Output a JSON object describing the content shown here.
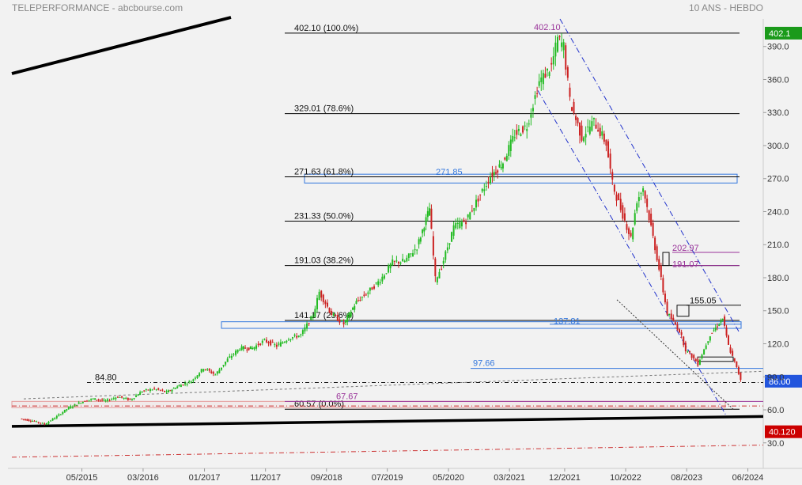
{
  "header": {
    "title": "TELEPERFORMANCE - abcbourse.com",
    "period": "10 ANS - HEBDO"
  },
  "colors": {
    "background": "#f2f2f2",
    "up": "#22bb22",
    "down": "#cc2222",
    "fib": "#000000",
    "channel": "#2233cc",
    "zone": "#3377dd",
    "purple": "#993399",
    "label_green": "#1a9a1a",
    "label_blue": "#2255dd",
    "label_red": "#cc0000"
  },
  "chart_data": {
    "type": "candlestick",
    "title": "TELEPERFORMANCE - abcbourse.com",
    "timeframe": "10 ANS - HEBDO",
    "y_axis": {
      "position": "right",
      "ticks": [
        390.0,
        360.0,
        330.0,
        300.0,
        270.0,
        240.0,
        210.0,
        180.0,
        150.0,
        120.0,
        90.0,
        60.0,
        30.0
      ]
    },
    "x_axis": {
      "ticks": [
        "05/2015",
        "03/2016",
        "01/2017",
        "11/2017",
        "09/2018",
        "07/2019",
        "05/2020",
        "03/2021",
        "12/2021",
        "10/2022",
        "08/2023",
        "06/2024"
      ]
    },
    "price_path": [
      {
        "date": "2014-07",
        "price": 52
      },
      {
        "date": "2014-09",
        "price": 50
      },
      {
        "date": "2014-11",
        "price": 47
      },
      {
        "date": "2015-01",
        "price": 54
      },
      {
        "date": "2015-03",
        "price": 62
      },
      {
        "date": "2015-05",
        "price": 67
      },
      {
        "date": "2015-07",
        "price": 70
      },
      {
        "date": "2015-09",
        "price": 68
      },
      {
        "date": "2015-11",
        "price": 72
      },
      {
        "date": "2016-01",
        "price": 69
      },
      {
        "date": "2016-03",
        "price": 77
      },
      {
        "date": "2016-05",
        "price": 79
      },
      {
        "date": "2016-07",
        "price": 76
      },
      {
        "date": "2016-09",
        "price": 82
      },
      {
        "date": "2016-11",
        "price": 86
      },
      {
        "date": "2017-01",
        "price": 98
      },
      {
        "date": "2017-03",
        "price": 92
      },
      {
        "date": "2017-05",
        "price": 106
      },
      {
        "date": "2017-07",
        "price": 116
      },
      {
        "date": "2017-09",
        "price": 116
      },
      {
        "date": "2017-11",
        "price": 123
      },
      {
        "date": "2018-01",
        "price": 118
      },
      {
        "date": "2018-03",
        "price": 125
      },
      {
        "date": "2018-05",
        "price": 128
      },
      {
        "date": "2018-07",
        "price": 146
      },
      {
        "date": "2018-08",
        "price": 167
      },
      {
        "date": "2018-10",
        "price": 147
      },
      {
        "date": "2018-12",
        "price": 138
      },
      {
        "date": "2019-02",
        "price": 158
      },
      {
        "date": "2019-04",
        "price": 167
      },
      {
        "date": "2019-06",
        "price": 178
      },
      {
        "date": "2019-08",
        "price": 194
      },
      {
        "date": "2019-10",
        "price": 195
      },
      {
        "date": "2019-12",
        "price": 208
      },
      {
        "date": "2020-02",
        "price": 243
      },
      {
        "date": "2020-03",
        "price": 178
      },
      {
        "date": "2020-04",
        "price": 190
      },
      {
        "date": "2020-06",
        "price": 226
      },
      {
        "date": "2020-08",
        "price": 232
      },
      {
        "date": "2020-10",
        "price": 252
      },
      {
        "date": "2020-12",
        "price": 272
      },
      {
        "date": "2021-02",
        "price": 285
      },
      {
        "date": "2021-04",
        "price": 310
      },
      {
        "date": "2021-06",
        "price": 318
      },
      {
        "date": "2021-08",
        "price": 358
      },
      {
        "date": "2021-10",
        "price": 372
      },
      {
        "date": "2021-11",
        "price": 397
      },
      {
        "date": "2021-12",
        "price": 390
      },
      {
        "date": "2022-01",
        "price": 340
      },
      {
        "date": "2022-03",
        "price": 308
      },
      {
        "date": "2022-05",
        "price": 322
      },
      {
        "date": "2022-07",
        "price": 302
      },
      {
        "date": "2022-08",
        "price": 265
      },
      {
        "date": "2022-09",
        "price": 248
      },
      {
        "date": "2022-11",
        "price": 216
      },
      {
        "date": "2022-12",
        "price": 250
      },
      {
        "date": "2023-01",
        "price": 262
      },
      {
        "date": "2023-03",
        "price": 208
      },
      {
        "date": "2023-05",
        "price": 148
      },
      {
        "date": "2023-07",
        "price": 132
      },
      {
        "date": "2023-08",
        "price": 115
      },
      {
        "date": "2023-10",
        "price": 102
      },
      {
        "date": "2023-12",
        "price": 128
      },
      {
        "date": "2024-02",
        "price": 143
      },
      {
        "date": "2024-03",
        "price": 118
      },
      {
        "date": "2024-04",
        "price": 103
      },
      {
        "date": "2024-05",
        "price": 88
      }
    ],
    "fibonacci_levels": [
      {
        "label": "402.10  (100.0%)",
        "value": 402.1
      },
      {
        "label": "329.01  (78.6%)",
        "value": 329.01
      },
      {
        "label": "271.63  (61.8%)",
        "value": 271.63
      },
      {
        "label": "231.33  (50.0%)",
        "value": 231.33
      },
      {
        "label": "191.03  (38.2%)",
        "value": 191.03
      },
      {
        "label": "141.17  (23.6%)",
        "value": 141.17
      },
      {
        "label": "60.57  (0.0%)",
        "value": 60.57
      }
    ],
    "annotations": [
      {
        "text": "402.10",
        "value": 402.1
      },
      {
        "text": "271.85",
        "value": 271.85
      },
      {
        "text": "202.97",
        "value": 202.97
      },
      {
        "text": "191.07",
        "value": 191.07
      },
      {
        "text": "155.05",
        "value": 155.05
      },
      {
        "text": "137.81",
        "value": 137.81
      },
      {
        "text": "97.66",
        "value": 97.66
      },
      {
        "text": "84.80",
        "value": 84.8
      },
      {
        "text": "67.67",
        "value": 67.67
      }
    ],
    "price_tags": [
      {
        "text": "402.1",
        "value": 402.1,
        "color": "green"
      },
      {
        "text": "86.00",
        "value": 86.0,
        "color": "blue"
      },
      {
        "text": "40.120",
        "value": 40.12,
        "color": "red"
      }
    ]
  }
}
